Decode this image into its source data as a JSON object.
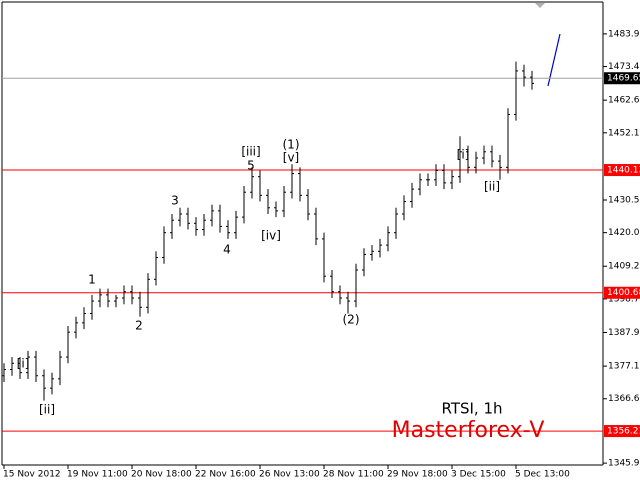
{
  "chart_data": {
    "type": "ohlc",
    "symbol": "RTSI, 1h",
    "watermark": "Masterforex-V",
    "color": "#000000",
    "categories": [
      "15 Nov 2012",
      null,
      null,
      null,
      null,
      null,
      null,
      null,
      "19 Nov 11:00",
      null,
      null,
      null,
      null,
      null,
      null,
      null,
      "20 Nov 18:00",
      null,
      null,
      null,
      null,
      null,
      null,
      null,
      "22 Nov 16:00",
      null,
      null,
      null,
      null,
      null,
      null,
      null,
      "26 Nov 13:00",
      null,
      null,
      null,
      null,
      null,
      null,
      null,
      "28 Nov 11:00",
      null,
      null,
      null,
      null,
      null,
      null,
      null,
      "29 Nov 18:00",
      null,
      null,
      null,
      null,
      null,
      null,
      null,
      "3 Dec 15:00",
      null,
      null,
      null,
      null,
      null,
      null,
      null,
      "5 Dec 13:00",
      null,
      null
    ],
    "open": [
      1374,
      1376,
      1378,
      1375,
      1380,
      1374,
      1370,
      1373,
      1380,
      1388,
      1391,
      1394,
      1398,
      1400,
      1398,
      1399,
      1401,
      1399,
      1396,
      1405,
      1412,
      1420,
      1424,
      1426,
      1423,
      1421,
      1424,
      1427,
      1422,
      1420,
      1425,
      1433,
      1438,
      1432,
      1428,
      1427,
      1433,
      1439,
      1432,
      1426,
      1418,
      1406,
      1401,
      1399,
      1398,
      1408,
      1413,
      1414,
      1416,
      1420,
      1426,
      1430,
      1434,
      1437,
      1437,
      1440,
      1436,
      1438,
      1446,
      1441,
      1444,
      1446,
      1443,
      1441,
      1458,
      1472,
      1470
    ],
    "high": [
      1378,
      1380,
      1380,
      1382,
      1382,
      1376,
      1375,
      1382,
      1390,
      1393,
      1396,
      1400,
      1402,
      1402,
      1400,
      1403,
      1403,
      1401,
      1407,
      1414,
      1422,
      1426,
      1428,
      1428,
      1425,
      1426,
      1429,
      1429,
      1424,
      1427,
      1435,
      1441,
      1440,
      1434,
      1430,
      1435,
      1442,
      1441,
      1434,
      1428,
      1420,
      1408,
      1403,
      1401,
      1410,
      1415,
      1416,
      1418,
      1422,
      1428,
      1432,
      1436,
      1439,
      1439,
      1442,
      1442,
      1440,
      1451,
      1448,
      1446,
      1448,
      1448,
      1445,
      1460,
      1475,
      1474,
      1472
    ],
    "low": [
      1372,
      1374,
      1373,
      1373,
      1372,
      1366,
      1368,
      1371,
      1378,
      1386,
      1389,
      1392,
      1396,
      1396,
      1396,
      1397,
      1397,
      1393,
      1394,
      1403,
      1410,
      1418,
      1422,
      1421,
      1419,
      1419,
      1422,
      1420,
      1418,
      1418,
      1423,
      1431,
      1430,
      1426,
      1425,
      1425,
      1431,
      1430,
      1424,
      1416,
      1404,
      1399,
      1397,
      1394,
      1396,
      1406,
      1411,
      1412,
      1414,
      1418,
      1424,
      1428,
      1432,
      1435,
      1435,
      1434,
      1434,
      1436,
      1439,
      1439,
      1442,
      1441,
      1437,
      1439,
      1456,
      1467,
      1466
    ],
    "close": [
      1376,
      1378,
      1375,
      1380,
      1374,
      1370,
      1373,
      1380,
      1388,
      1391,
      1394,
      1398,
      1400,
      1398,
      1399,
      1401,
      1399,
      1396,
      1405,
      1412,
      1420,
      1424,
      1426,
      1423,
      1421,
      1424,
      1427,
      1422,
      1420,
      1425,
      1433,
      1438,
      1432,
      1428,
      1427,
      1433,
      1439,
      1432,
      1426,
      1418,
      1406,
      1401,
      1399,
      1398,
      1408,
      1413,
      1414,
      1416,
      1420,
      1426,
      1430,
      1434,
      1437,
      1437,
      1440,
      1436,
      1438,
      1446,
      1441,
      1444,
      1446,
      1443,
      1441,
      1458,
      1472,
      1470,
      1468
    ],
    "ylim": [
      1345.3,
      1494.8
    ],
    "yticks": [
      {
        "value": 1483.9,
        "label": "1483.90"
      },
      {
        "value": 1473.4,
        "label": "1473.40"
      },
      {
        "value": 1462.6,
        "label": "1462.60"
      },
      {
        "value": 1452.1,
        "label": "1452.10"
      },
      {
        "value": 1430.5,
        "label": "1430.50"
      },
      {
        "value": 1420,
        "label": "1420.00"
      },
      {
        "value": 1409.2,
        "label": "1409.20"
      },
      {
        "value": 1398.7,
        "label": "1398.70"
      },
      {
        "value": 1387.9,
        "label": "1387.90"
      },
      {
        "value": 1377.1,
        "label": "1377.10"
      },
      {
        "value": 1366.6,
        "label": "1366.60"
      },
      {
        "value": 1345.9,
        "label": "1345.90"
      }
    ],
    "hlines": [
      {
        "value": 1440.13,
        "color": "#ff0000"
      },
      {
        "value": 1400.68,
        "color": "#ff0000"
      },
      {
        "value": 1356.21,
        "color": "#ff0000"
      }
    ],
    "current_price": {
      "value": 1469.65,
      "color": "#a0a0a0"
    },
    "annotations": [
      "[i]",
      "[ii]",
      "1",
      "2",
      "3",
      "4",
      "[iii]",
      "5",
      "(1)",
      "[v]",
      "[iv]",
      "(2)",
      "[i]",
      "[ii]"
    ]
  }
}
